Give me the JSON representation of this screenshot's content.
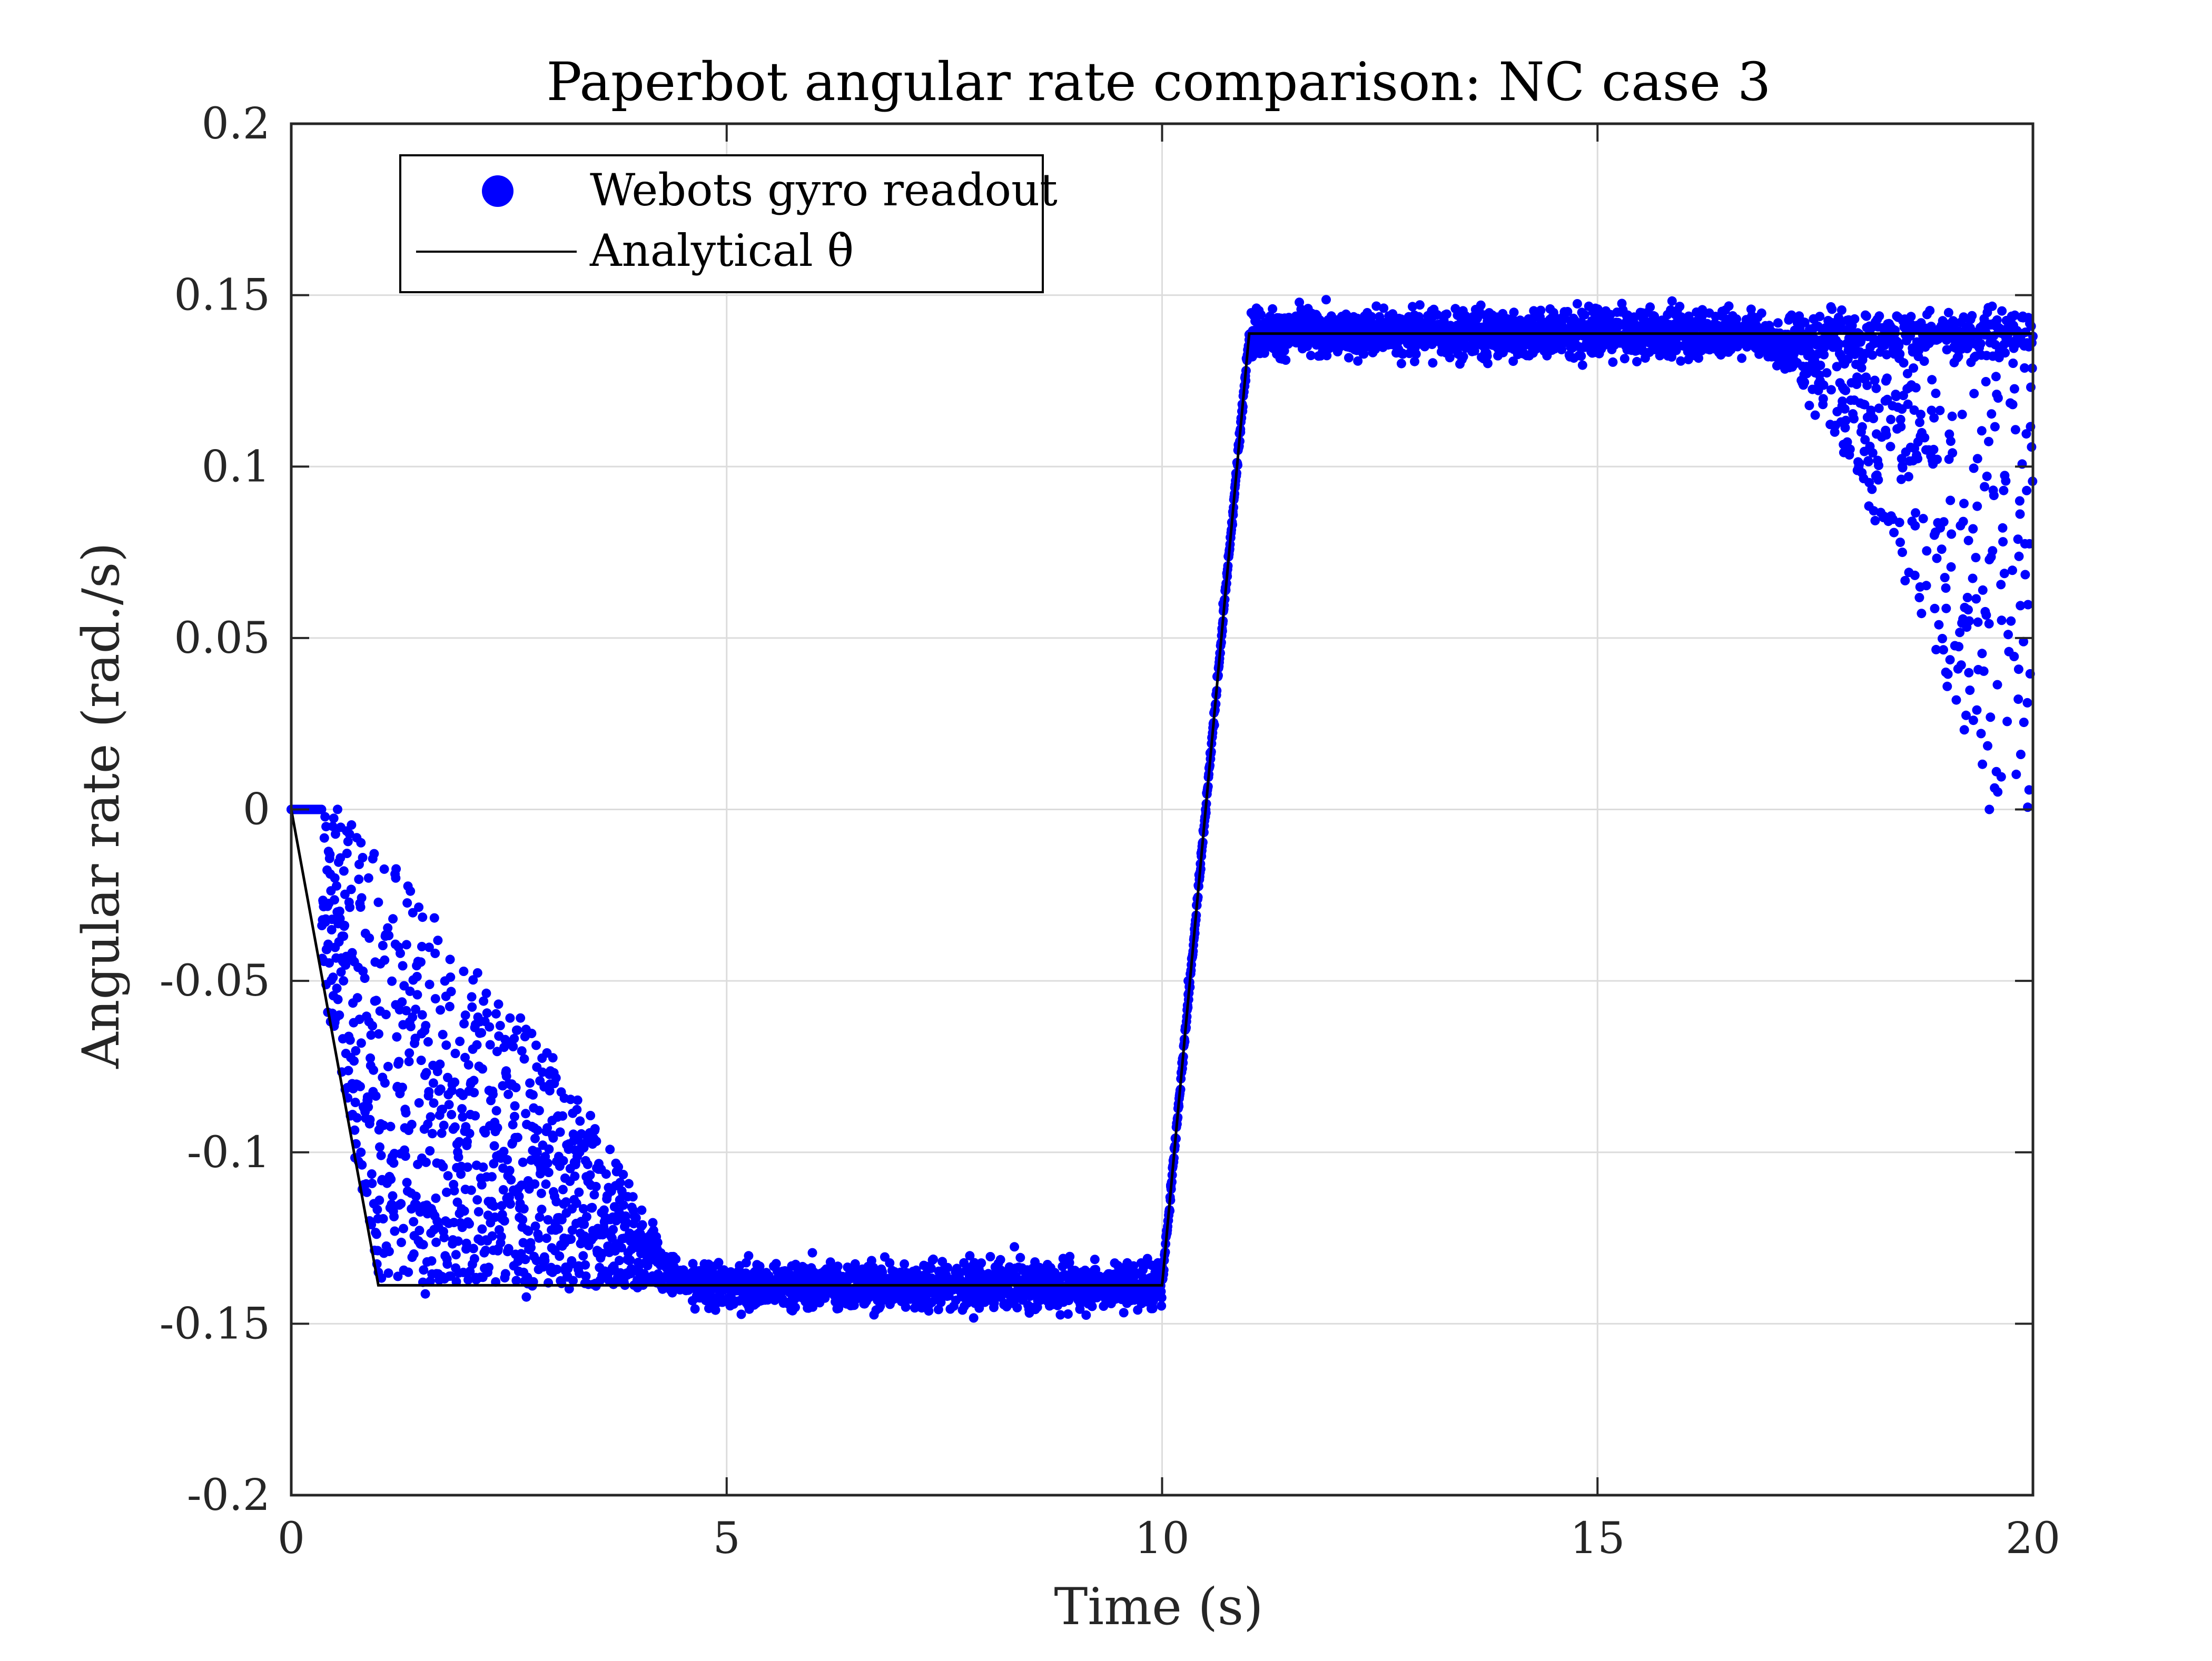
{
  "chart_data": {
    "type": "scatter",
    "title": "Paperbot angular rate comparison: NC case 3",
    "xlabel": "Time (s)",
    "ylabel": "Angular rate (rad./s)",
    "xlim": [
      0,
      20
    ],
    "ylim": [
      -0.2,
      0.2
    ],
    "x_ticks": [
      0,
      5,
      10,
      15,
      20
    ],
    "x_tick_labels": [
      "0",
      "5",
      "10",
      "15",
      "20"
    ],
    "y_ticks": [
      -0.2,
      -0.15,
      -0.1,
      -0.05,
      0,
      0.05,
      0.1,
      0.15,
      0.2
    ],
    "y_tick_labels": [
      "-0.2",
      "-0.15",
      "-0.1",
      "-0.05",
      "0",
      "0.05",
      "0.1",
      "0.15",
      "0.2"
    ],
    "grid": true,
    "legend_position": "top-left",
    "series": [
      {
        "name": "Webots gyro readout",
        "kind": "scatter",
        "color": "#0000ff",
        "points": [
          [
            0.0,
            0.0
          ],
          [
            0.2,
            0.0
          ],
          [
            0.3,
            0.0
          ],
          [
            0.4,
            -0.005
          ],
          [
            0.5,
            -0.02
          ],
          [
            0.6,
            -0.05
          ],
          [
            0.7,
            -0.08
          ],
          [
            0.8,
            -0.1
          ],
          [
            0.9,
            -0.12
          ],
          [
            1.0,
            -0.135
          ],
          [
            1.2,
            -0.02
          ],
          [
            1.5,
            -0.04
          ],
          [
            2.0,
            -0.06
          ],
          [
            2.5,
            -0.08
          ],
          [
            3.0,
            -0.095
          ],
          [
            3.5,
            -0.11
          ],
          [
            4.0,
            -0.125
          ],
          [
            4.5,
            -0.135
          ],
          [
            5.0,
            -0.138
          ],
          [
            6.0,
            -0.139
          ],
          [
            7.0,
            -0.138
          ],
          [
            8.0,
            -0.139
          ],
          [
            9.0,
            -0.138
          ],
          [
            10.0,
            -0.137
          ],
          [
            10.1,
            -0.11
          ],
          [
            10.3,
            -0.05
          ],
          [
            10.5,
            0.0
          ],
          [
            10.7,
            0.06
          ],
          [
            10.9,
            0.11
          ],
          [
            11.0,
            0.137
          ],
          [
            12.0,
            0.138
          ],
          [
            13.0,
            0.138
          ],
          [
            14.0,
            0.139
          ],
          [
            15.0,
            0.138
          ],
          [
            16.0,
            0.139
          ],
          [
            17.0,
            0.132
          ],
          [
            17.5,
            0.115
          ],
          [
            18.0,
            0.1
          ],
          [
            18.5,
            0.075
          ],
          [
            19.0,
            0.04
          ],
          [
            19.5,
            0.0
          ],
          [
            19.6,
            0.12
          ],
          [
            20.0,
            0.138
          ]
        ]
      },
      {
        "name": "Analytical θ̇",
        "kind": "line",
        "color": "#000000",
        "x": [
          0,
          1.0,
          10.0,
          11.0,
          20.0
        ],
        "y": [
          0,
          -0.1388,
          -0.1388,
          0.1388,
          0.1388
        ]
      }
    ]
  }
}
